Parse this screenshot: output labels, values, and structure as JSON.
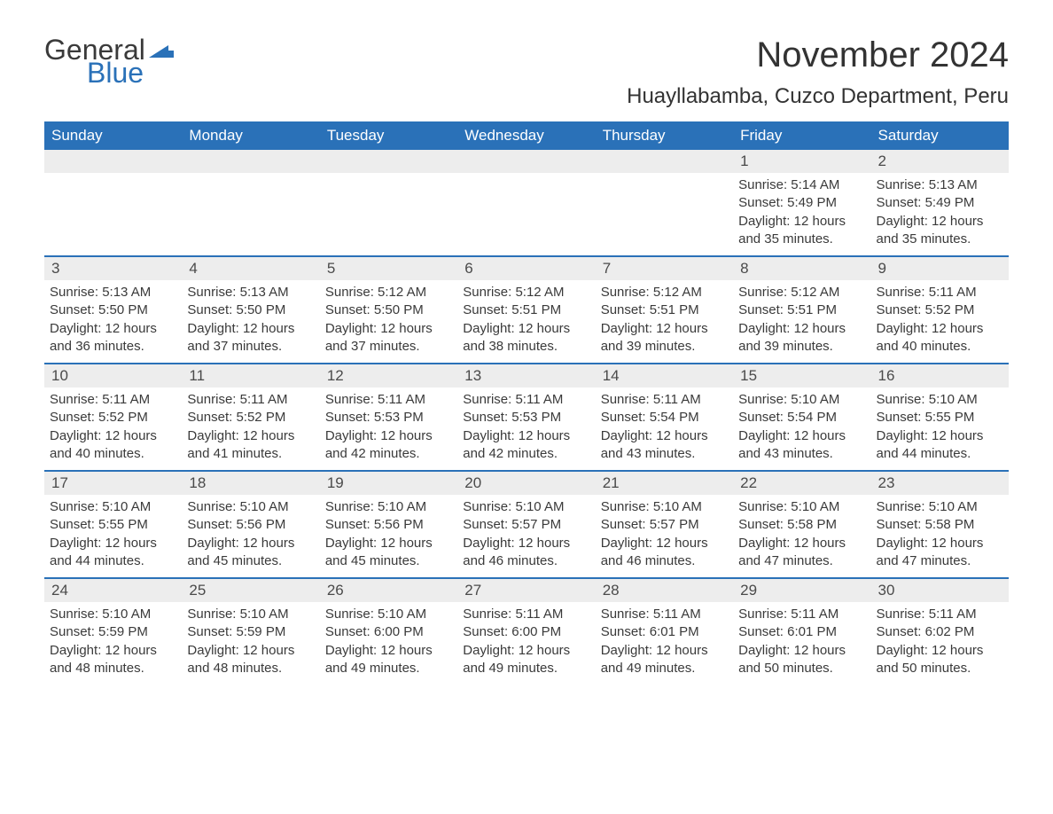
{
  "brand": {
    "text_general": "General",
    "text_blue": "Blue",
    "mark_color": "#2a71b8"
  },
  "header": {
    "month_title": "November 2024",
    "location": "Huayllabamba, Cuzco Department, Peru"
  },
  "colors": {
    "header_bg": "#2a71b8",
    "header_text": "#ffffff",
    "daynum_bg": "#ededed",
    "body_text": "#3a3a3a",
    "rule": "#2a71b8",
    "page_bg": "#ffffff"
  },
  "day_names": [
    "Sunday",
    "Monday",
    "Tuesday",
    "Wednesday",
    "Thursday",
    "Friday",
    "Saturday"
  ],
  "weeks": [
    [
      {
        "day": "",
        "sunrise": "",
        "sunset": "",
        "daylight": ""
      },
      {
        "day": "",
        "sunrise": "",
        "sunset": "",
        "daylight": ""
      },
      {
        "day": "",
        "sunrise": "",
        "sunset": "",
        "daylight": ""
      },
      {
        "day": "",
        "sunrise": "",
        "sunset": "",
        "daylight": ""
      },
      {
        "day": "",
        "sunrise": "",
        "sunset": "",
        "daylight": ""
      },
      {
        "day": "1",
        "sunrise": "Sunrise: 5:14 AM",
        "sunset": "Sunset: 5:49 PM",
        "daylight": "Daylight: 12 hours and 35 minutes."
      },
      {
        "day": "2",
        "sunrise": "Sunrise: 5:13 AM",
        "sunset": "Sunset: 5:49 PM",
        "daylight": "Daylight: 12 hours and 35 minutes."
      }
    ],
    [
      {
        "day": "3",
        "sunrise": "Sunrise: 5:13 AM",
        "sunset": "Sunset: 5:50 PM",
        "daylight": "Daylight: 12 hours and 36 minutes."
      },
      {
        "day": "4",
        "sunrise": "Sunrise: 5:13 AM",
        "sunset": "Sunset: 5:50 PM",
        "daylight": "Daylight: 12 hours and 37 minutes."
      },
      {
        "day": "5",
        "sunrise": "Sunrise: 5:12 AM",
        "sunset": "Sunset: 5:50 PM",
        "daylight": "Daylight: 12 hours and 37 minutes."
      },
      {
        "day": "6",
        "sunrise": "Sunrise: 5:12 AM",
        "sunset": "Sunset: 5:51 PM",
        "daylight": "Daylight: 12 hours and 38 minutes."
      },
      {
        "day": "7",
        "sunrise": "Sunrise: 5:12 AM",
        "sunset": "Sunset: 5:51 PM",
        "daylight": "Daylight: 12 hours and 39 minutes."
      },
      {
        "day": "8",
        "sunrise": "Sunrise: 5:12 AM",
        "sunset": "Sunset: 5:51 PM",
        "daylight": "Daylight: 12 hours and 39 minutes."
      },
      {
        "day": "9",
        "sunrise": "Sunrise: 5:11 AM",
        "sunset": "Sunset: 5:52 PM",
        "daylight": "Daylight: 12 hours and 40 minutes."
      }
    ],
    [
      {
        "day": "10",
        "sunrise": "Sunrise: 5:11 AM",
        "sunset": "Sunset: 5:52 PM",
        "daylight": "Daylight: 12 hours and 40 minutes."
      },
      {
        "day": "11",
        "sunrise": "Sunrise: 5:11 AM",
        "sunset": "Sunset: 5:52 PM",
        "daylight": "Daylight: 12 hours and 41 minutes."
      },
      {
        "day": "12",
        "sunrise": "Sunrise: 5:11 AM",
        "sunset": "Sunset: 5:53 PM",
        "daylight": "Daylight: 12 hours and 42 minutes."
      },
      {
        "day": "13",
        "sunrise": "Sunrise: 5:11 AM",
        "sunset": "Sunset: 5:53 PM",
        "daylight": "Daylight: 12 hours and 42 minutes."
      },
      {
        "day": "14",
        "sunrise": "Sunrise: 5:11 AM",
        "sunset": "Sunset: 5:54 PM",
        "daylight": "Daylight: 12 hours and 43 minutes."
      },
      {
        "day": "15",
        "sunrise": "Sunrise: 5:10 AM",
        "sunset": "Sunset: 5:54 PM",
        "daylight": "Daylight: 12 hours and 43 minutes."
      },
      {
        "day": "16",
        "sunrise": "Sunrise: 5:10 AM",
        "sunset": "Sunset: 5:55 PM",
        "daylight": "Daylight: 12 hours and 44 minutes."
      }
    ],
    [
      {
        "day": "17",
        "sunrise": "Sunrise: 5:10 AM",
        "sunset": "Sunset: 5:55 PM",
        "daylight": "Daylight: 12 hours and 44 minutes."
      },
      {
        "day": "18",
        "sunrise": "Sunrise: 5:10 AM",
        "sunset": "Sunset: 5:56 PM",
        "daylight": "Daylight: 12 hours and 45 minutes."
      },
      {
        "day": "19",
        "sunrise": "Sunrise: 5:10 AM",
        "sunset": "Sunset: 5:56 PM",
        "daylight": "Daylight: 12 hours and 45 minutes."
      },
      {
        "day": "20",
        "sunrise": "Sunrise: 5:10 AM",
        "sunset": "Sunset: 5:57 PM",
        "daylight": "Daylight: 12 hours and 46 minutes."
      },
      {
        "day": "21",
        "sunrise": "Sunrise: 5:10 AM",
        "sunset": "Sunset: 5:57 PM",
        "daylight": "Daylight: 12 hours and 46 minutes."
      },
      {
        "day": "22",
        "sunrise": "Sunrise: 5:10 AM",
        "sunset": "Sunset: 5:58 PM",
        "daylight": "Daylight: 12 hours and 47 minutes."
      },
      {
        "day": "23",
        "sunrise": "Sunrise: 5:10 AM",
        "sunset": "Sunset: 5:58 PM",
        "daylight": "Daylight: 12 hours and 47 minutes."
      }
    ],
    [
      {
        "day": "24",
        "sunrise": "Sunrise: 5:10 AM",
        "sunset": "Sunset: 5:59 PM",
        "daylight": "Daylight: 12 hours and 48 minutes."
      },
      {
        "day": "25",
        "sunrise": "Sunrise: 5:10 AM",
        "sunset": "Sunset: 5:59 PM",
        "daylight": "Daylight: 12 hours and 48 minutes."
      },
      {
        "day": "26",
        "sunrise": "Sunrise: 5:10 AM",
        "sunset": "Sunset: 6:00 PM",
        "daylight": "Daylight: 12 hours and 49 minutes."
      },
      {
        "day": "27",
        "sunrise": "Sunrise: 5:11 AM",
        "sunset": "Sunset: 6:00 PM",
        "daylight": "Daylight: 12 hours and 49 minutes."
      },
      {
        "day": "28",
        "sunrise": "Sunrise: 5:11 AM",
        "sunset": "Sunset: 6:01 PM",
        "daylight": "Daylight: 12 hours and 49 minutes."
      },
      {
        "day": "29",
        "sunrise": "Sunrise: 5:11 AM",
        "sunset": "Sunset: 6:01 PM",
        "daylight": "Daylight: 12 hours and 50 minutes."
      },
      {
        "day": "30",
        "sunrise": "Sunrise: 5:11 AM",
        "sunset": "Sunset: 6:02 PM",
        "daylight": "Daylight: 12 hours and 50 minutes."
      }
    ]
  ]
}
